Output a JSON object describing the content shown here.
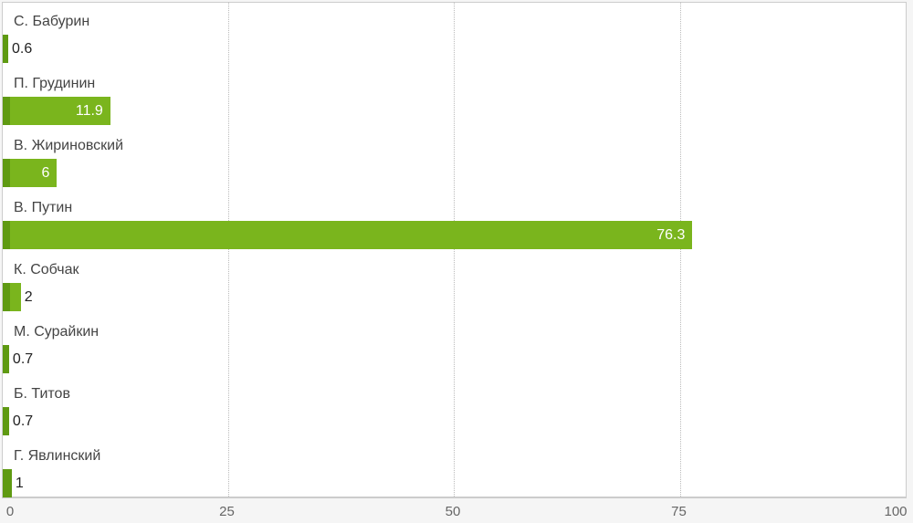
{
  "chart_data": {
    "type": "bar",
    "orientation": "horizontal",
    "categories": [
      "С. Бабурин",
      "П. Грудинин",
      "В. Жириновский",
      "В. Путин",
      "К. Собчак",
      "М. Сурайкин",
      "Б. Титов",
      "Г. Явлинский"
    ],
    "values": [
      0.6,
      11.9,
      6,
      76.3,
      2,
      0.7,
      0.7,
      1
    ],
    "value_labels": [
      "0.6",
      "11.9",
      "6",
      "76.3",
      "2",
      "0.7",
      "0.7",
      "1"
    ],
    "xlim": [
      0,
      100
    ],
    "ticks": [
      "0",
      "25",
      "50",
      "75",
      "100"
    ],
    "grid": true,
    "bar_color": "#7ab51d",
    "bar_accent_color": "#5f9a12"
  }
}
